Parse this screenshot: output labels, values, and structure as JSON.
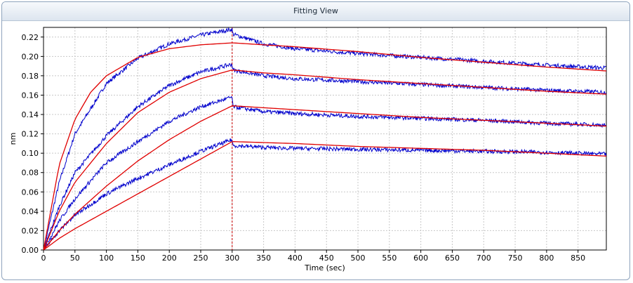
{
  "window": {
    "title": "Fitting View"
  },
  "chart_data": {
    "type": "line",
    "title": "",
    "xlabel": "Time (sec)",
    "ylabel": "nm",
    "xlim": [
      0,
      895
    ],
    "ylim": [
      0,
      0.23
    ],
    "x_ticks": [
      0,
      50,
      100,
      150,
      200,
      250,
      300,
      350,
      400,
      450,
      500,
      550,
      600,
      650,
      700,
      750,
      800,
      850
    ],
    "y_ticks": [
      0.0,
      0.02,
      0.04,
      0.06,
      0.08,
      0.1,
      0.12,
      0.14,
      0.16,
      0.18,
      0.2,
      0.22
    ],
    "y_tick_labels": [
      "0.00",
      "0.02",
      "0.04",
      "0.06",
      "0.08",
      "0.10",
      "0.12",
      "0.14",
      "0.16",
      "0.18",
      "0.20",
      "0.22"
    ],
    "grid": true,
    "legend": "none",
    "association_end_time": 300,
    "colors": {
      "measured": "#0000cc",
      "fit": "#e00000",
      "marker": "#cc0000",
      "grid": "#c8c8c8"
    },
    "series": [
      {
        "measured": {
          "x": [
            0,
            25,
            50,
            100,
            150,
            200,
            250,
            300,
            301,
            350,
            400,
            500,
            600,
            700,
            800,
            895
          ],
          "y": [
            0.0,
            0.07,
            0.12,
            0.172,
            0.198,
            0.213,
            0.222,
            0.228,
            0.223,
            0.213,
            0.208,
            0.203,
            0.199,
            0.195,
            0.191,
            0.188
          ]
        },
        "fit": {
          "x": [
            0,
            25,
            50,
            75,
            100,
            150,
            200,
            250,
            300,
            301,
            350,
            400,
            500,
            600,
            700,
            800,
            895
          ],
          "y": [
            0.0,
            0.088,
            0.135,
            0.163,
            0.18,
            0.199,
            0.208,
            0.212,
            0.214,
            0.214,
            0.212,
            0.21,
            0.205,
            0.199,
            0.194,
            0.189,
            0.185
          ]
        }
      },
      {
        "measured": {
          "x": [
            0,
            25,
            50,
            100,
            150,
            200,
            250,
            300,
            301,
            350,
            400,
            500,
            600,
            700,
            800,
            895
          ],
          "y": [
            0.0,
            0.045,
            0.08,
            0.118,
            0.148,
            0.17,
            0.184,
            0.192,
            0.186,
            0.18,
            0.177,
            0.174,
            0.171,
            0.168,
            0.165,
            0.163
          ]
        },
        "fit": {
          "x": [
            0,
            25,
            50,
            100,
            150,
            200,
            250,
            300,
            301,
            350,
            400,
            500,
            600,
            700,
            800,
            895
          ],
          "y": [
            0.0,
            0.04,
            0.07,
            0.11,
            0.142,
            0.163,
            0.177,
            0.186,
            0.186,
            0.183,
            0.181,
            0.176,
            0.172,
            0.168,
            0.164,
            0.161
          ]
        }
      },
      {
        "measured": {
          "x": [
            0,
            25,
            50,
            100,
            150,
            200,
            250,
            300,
            301,
            350,
            400,
            500,
            600,
            700,
            800,
            895
          ],
          "y": [
            0.0,
            0.03,
            0.053,
            0.09,
            0.112,
            0.133,
            0.148,
            0.158,
            0.148,
            0.143,
            0.141,
            0.138,
            0.136,
            0.134,
            0.131,
            0.129
          ]
        },
        "fit": {
          "x": [
            0,
            25,
            50,
            100,
            150,
            200,
            250,
            300,
            301,
            350,
            400,
            500,
            600,
            700,
            800,
            895
          ],
          "y": [
            0.0,
            0.02,
            0.037,
            0.066,
            0.092,
            0.114,
            0.133,
            0.149,
            0.149,
            0.147,
            0.145,
            0.141,
            0.137,
            0.134,
            0.131,
            0.128
          ]
        }
      },
      {
        "measured": {
          "x": [
            0,
            25,
            50,
            100,
            150,
            200,
            250,
            300,
            301,
            350,
            400,
            500,
            600,
            700,
            800,
            895
          ],
          "y": [
            0.0,
            0.02,
            0.036,
            0.058,
            0.074,
            0.088,
            0.102,
            0.114,
            0.108,
            0.106,
            0.105,
            0.104,
            0.103,
            0.102,
            0.101,
            0.099
          ]
        },
        "fit": {
          "x": [
            0,
            25,
            50,
            100,
            150,
            200,
            250,
            300,
            301,
            350,
            400,
            500,
            600,
            700,
            800,
            895
          ],
          "y": [
            0.0,
            0.012,
            0.022,
            0.04,
            0.058,
            0.076,
            0.094,
            0.112,
            0.112,
            0.111,
            0.11,
            0.107,
            0.105,
            0.103,
            0.1,
            0.097
          ]
        }
      }
    ]
  }
}
